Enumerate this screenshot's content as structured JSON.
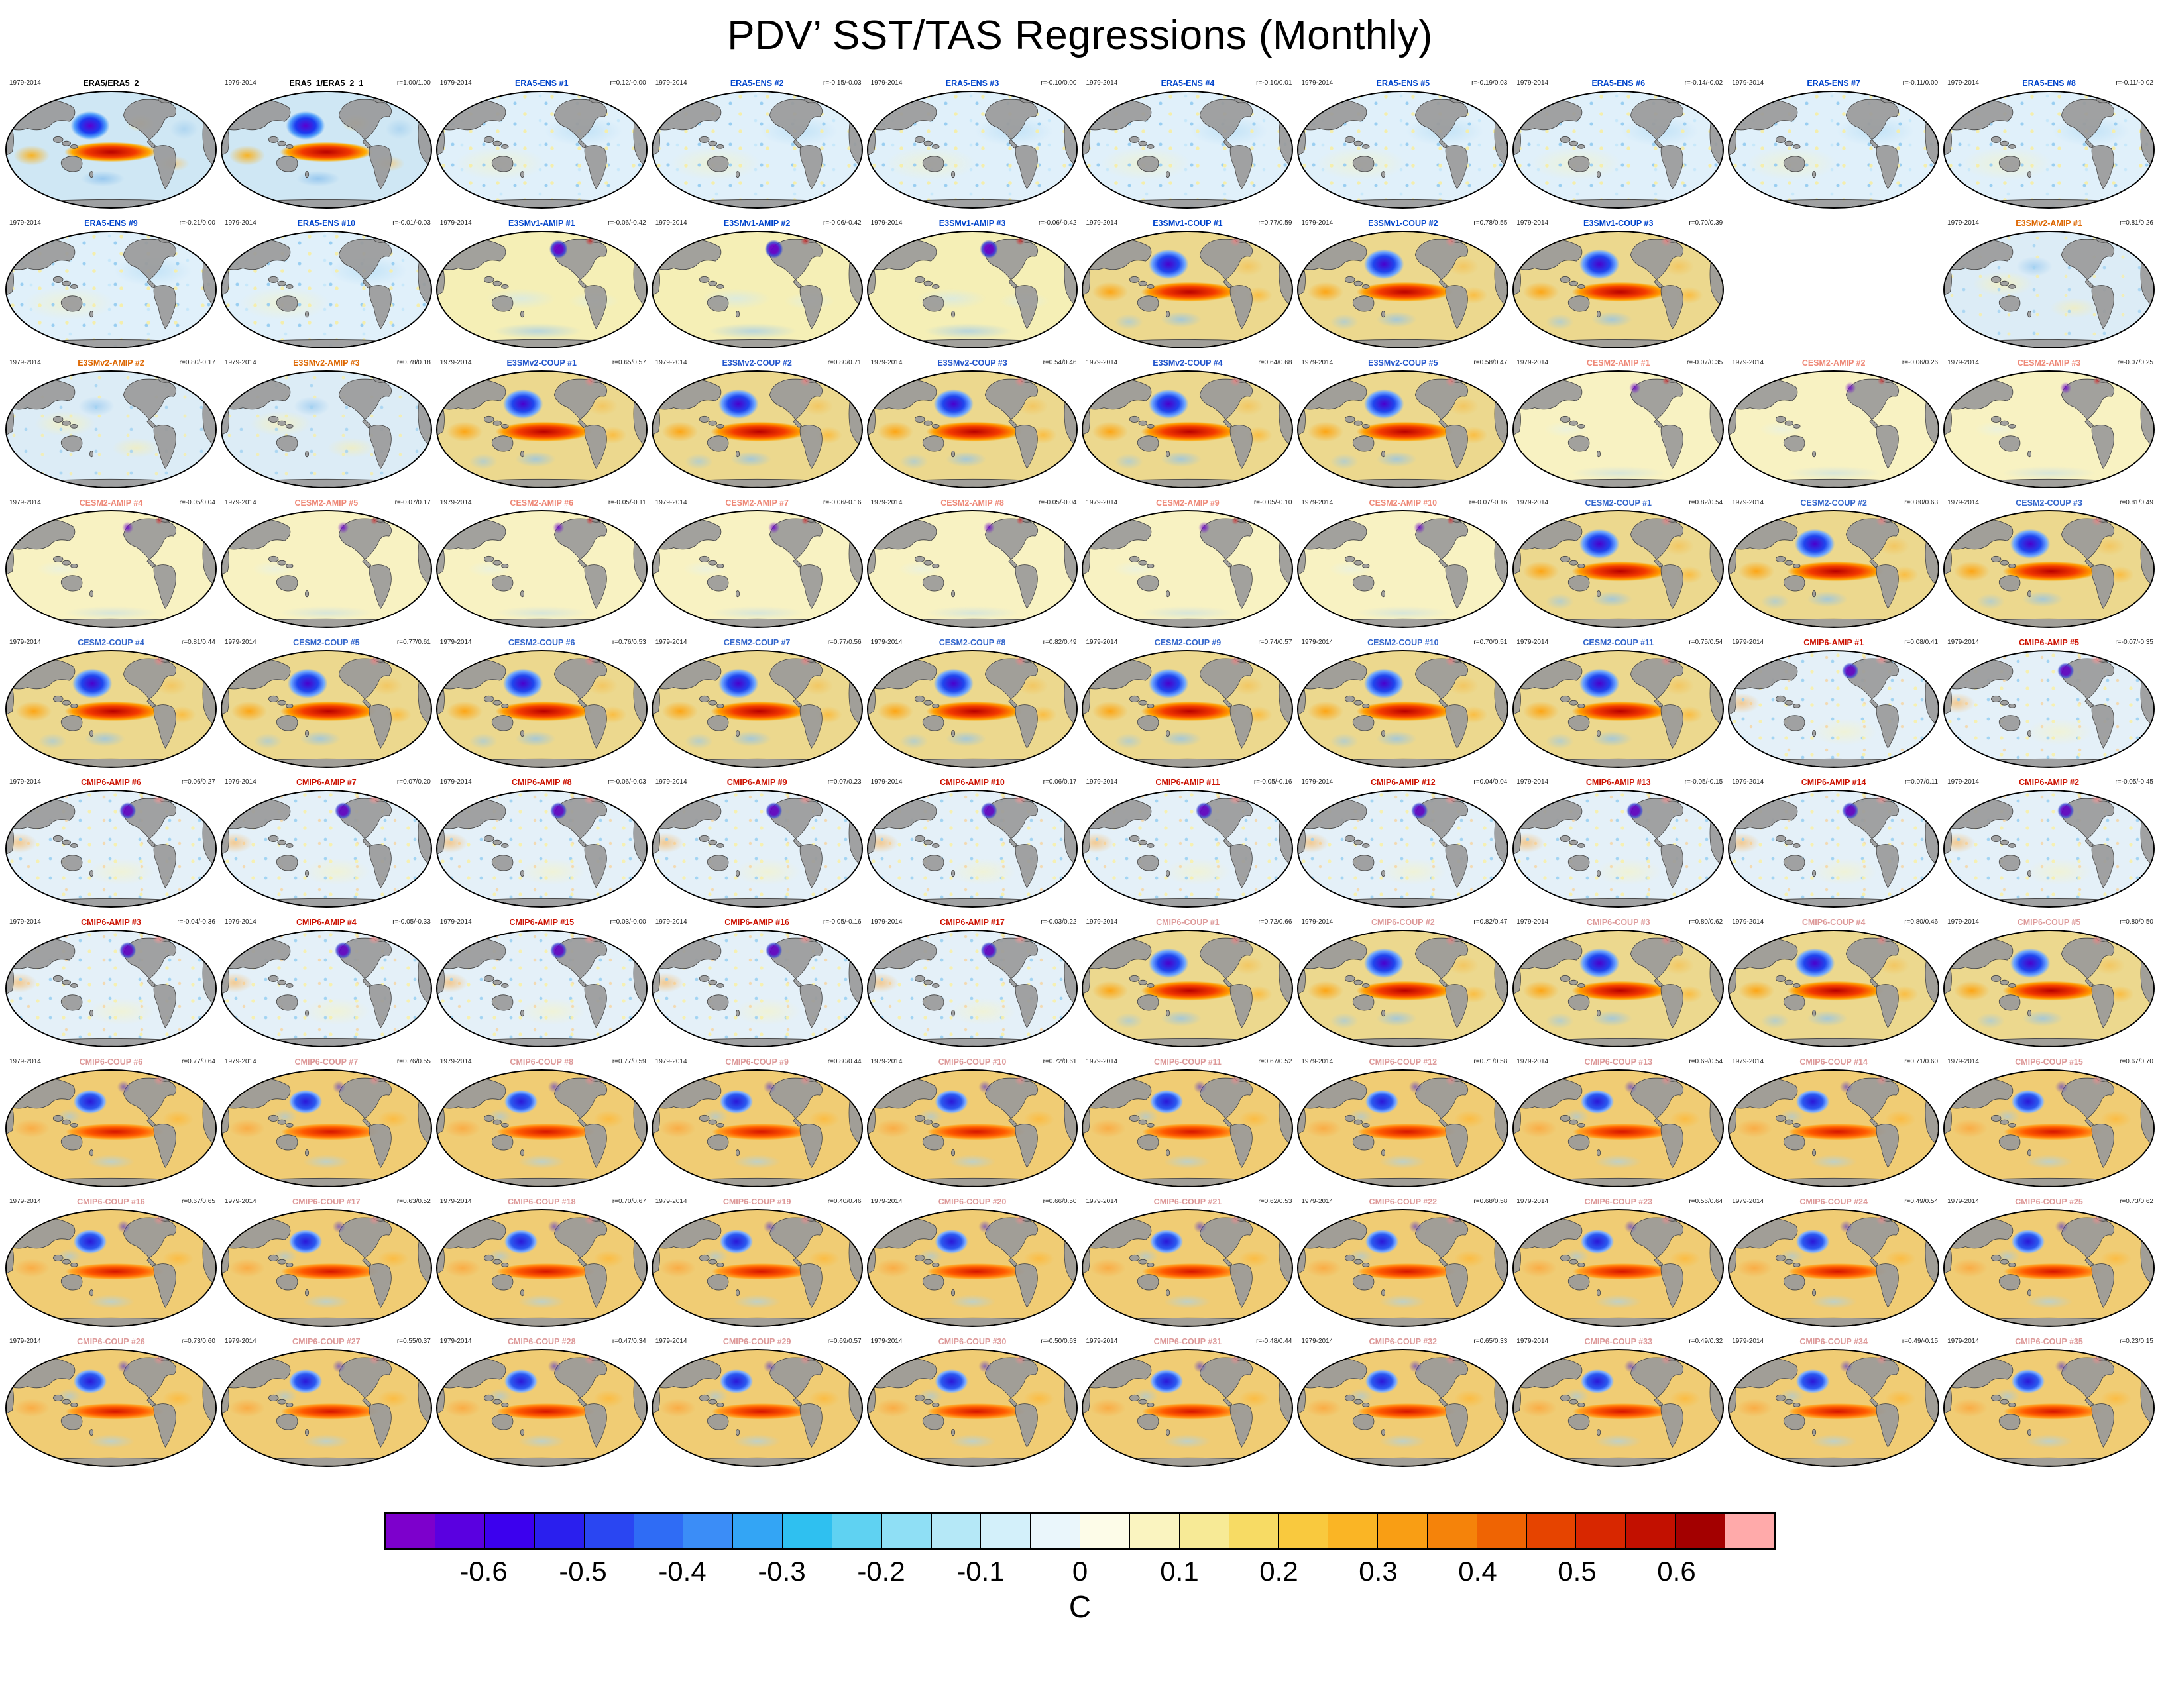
{
  "chart_data": {
    "type": "heatmap",
    "subtype": "global-regression-map-small-multiples",
    "title": "PDV’ SST/TAS Regressions (Monthly)",
    "period": "1979-2014",
    "grid": {
      "rows": 10,
      "cols": 10,
      "empty_cells": [
        {
          "row": 2,
          "col": 9
        }
      ]
    },
    "colorbar": {
      "label": "C",
      "min": -0.7,
      "max": 0.7,
      "tick_values": [
        -0.6,
        -0.5,
        -0.4,
        -0.3,
        -0.2,
        -0.1,
        0,
        0.1,
        0.2,
        0.3,
        0.4,
        0.5,
        0.6
      ],
      "tick_labels": [
        "-0.6",
        "-0.5",
        "-0.4",
        "-0.3",
        "-0.2",
        "-0.1",
        "0",
        "0.1",
        "0.2",
        "0.3",
        "0.4",
        "0.5",
        "0.6"
      ],
      "colors": [
        "#7d00cc",
        "#5a00e0",
        "#3c00ee",
        "#2a1fee",
        "#2a46f2",
        "#2f6cf5",
        "#3b8df7",
        "#33a5f5",
        "#2fc0f0",
        "#5fd2f2",
        "#8fdff5",
        "#b5e8f7",
        "#d3f0fa",
        "#eaf6fb",
        "#fdfce8",
        "#faf4c0",
        "#f7ea96",
        "#f7db64",
        "#f9c93e",
        "#fab525",
        "#f99e14",
        "#f5830a",
        "#ef6403",
        "#e64400",
        "#d82700",
        "#c21000",
        "#a30000",
        "#ffaaaa"
      ]
    },
    "rows": [
      [
        {
          "label": "ERA5/ERA5_2",
          "color": "#000000",
          "r": "",
          "pattern": "obs"
        },
        {
          "label": "ERA5_1/ERA5_2_1",
          "color": "#000000",
          "r": "r=1.00/1.00",
          "pattern": "obs"
        },
        {
          "label": "ERA5-ENS  #1",
          "color": "#0044cc",
          "r": "r=0.12/-0.00",
          "pattern": "ens"
        },
        {
          "label": "ERA5-ENS  #2",
          "color": "#0044cc",
          "r": "r=-0.15/-0.03",
          "pattern": "ens"
        },
        {
          "label": "ERA5-ENS  #3",
          "color": "#0044cc",
          "r": "r=-0.10/0.00",
          "pattern": "ens"
        },
        {
          "label": "ERA5-ENS  #4",
          "color": "#0044cc",
          "r": "r=-0.10/0.01",
          "pattern": "ens"
        },
        {
          "label": "ERA5-ENS  #5",
          "color": "#0044cc",
          "r": "r=-0.19/0.03",
          "pattern": "ens"
        },
        {
          "label": "ERA5-ENS  #6",
          "color": "#0044cc",
          "r": "r=-0.14/-0.02",
          "pattern": "ens"
        },
        {
          "label": "ERA5-ENS  #7",
          "color": "#0044cc",
          "r": "r=-0.11/0.00",
          "pattern": "ens"
        },
        {
          "label": "ERA5-ENS  #8",
          "color": "#0044cc",
          "r": "r=-0.11/-0.02",
          "pattern": "ens"
        }
      ],
      [
        {
          "label": "ERA5-ENS  #9",
          "color": "#0044cc",
          "r": "r=-0.21/0.00",
          "pattern": "ens"
        },
        {
          "label": "ERA5-ENS  #10",
          "color": "#0044cc",
          "r": "r=-0.01/-0.03",
          "pattern": "ens"
        },
        {
          "label": "E3SMv1-AMIP #1",
          "color": "#0044cc",
          "r": "r=-0.06/-0.42",
          "pattern": "amipv1"
        },
        {
          "label": "E3SMv1-AMIP #2",
          "color": "#0044cc",
          "r": "r=-0.06/-0.42",
          "pattern": "amipv1"
        },
        {
          "label": "E3SMv1-AMIP #3",
          "color": "#0044cc",
          "r": "r=-0.06/-0.42",
          "pattern": "amipv1"
        },
        {
          "label": "E3SMv1-COUP #1",
          "color": "#0044cc",
          "r": "r=0.77/0.59",
          "pattern": "coup"
        },
        {
          "label": "E3SMv1-COUP #2",
          "color": "#0044cc",
          "r": "r=0.78/0.55",
          "pattern": "coup"
        },
        {
          "label": "E3SMv1-COUP #3",
          "color": "#0044cc",
          "r": "r=0.70/0.39",
          "pattern": "coup"
        },
        null,
        {
          "label": "E3SMv2-AMIP #1",
          "color": "#dd6600",
          "r": "r=0.81/0.26",
          "pattern": "amipv2"
        }
      ],
      [
        {
          "label": "E3SMv2-AMIP #2",
          "color": "#dd6600",
          "r": "r=0.80/-0.17",
          "pattern": "amipv2"
        },
        {
          "label": "E3SMv2-AMIP #3",
          "color": "#dd6600",
          "r": "r=0.78/0.18",
          "pattern": "amipv2"
        },
        {
          "label": "E3SMv2-COUP #1",
          "color": "#2255cc",
          "r": "r=0.65/0.57",
          "pattern": "coup"
        },
        {
          "label": "E3SMv2-COUP #2",
          "color": "#2255cc",
          "r": "r=0.80/0.71",
          "pattern": "coup"
        },
        {
          "label": "E3SMv2-COUP #3",
          "color": "#2255cc",
          "r": "r=0.54/0.46",
          "pattern": "coup"
        },
        {
          "label": "E3SMv2-COUP #4",
          "color": "#2255cc",
          "r": "r=0.64/0.68",
          "pattern": "coup"
        },
        {
          "label": "E3SMv2-COUP #5",
          "color": "#2255cc",
          "r": "r=0.58/0.47",
          "pattern": "coup"
        },
        {
          "label": "CESM2-AMIP  #1",
          "color": "#ee8877",
          "r": "r=-0.07/0.35",
          "pattern": "amippale"
        },
        {
          "label": "CESM2-AMIP  #2",
          "color": "#ee8877",
          "r": "r=-0.06/0.26",
          "pattern": "amippale"
        },
        {
          "label": "CESM2-AMIP  #3",
          "color": "#ee8877",
          "r": "r=-0.07/0.25",
          "pattern": "amippale"
        }
      ],
      [
        {
          "label": "CESM2-AMIP  #4",
          "color": "#ee8877",
          "r": "r=-0.05/0.04",
          "pattern": "amippale"
        },
        {
          "label": "CESM2-AMIP  #5",
          "color": "#ee8877",
          "r": "r=-0.07/0.17",
          "pattern": "amippale"
        },
        {
          "label": "CESM2-AMIP  #6",
          "color": "#ee8877",
          "r": "r=-0.05/-0.11",
          "pattern": "amippale"
        },
        {
          "label": "CESM2-AMIP  #7",
          "color": "#ee8877",
          "r": "r=-0.06/-0.16",
          "pattern": "amippale"
        },
        {
          "label": "CESM2-AMIP  #8",
          "color": "#ee8877",
          "r": "r=-0.05/-0.04",
          "pattern": "amippale"
        },
        {
          "label": "CESM2-AMIP  #9",
          "color": "#ee8877",
          "r": "r=-0.05/-0.10",
          "pattern": "amippale"
        },
        {
          "label": "CESM2-AMIP  #10",
          "color": "#ee8877",
          "r": "r=-0.07/-0.16",
          "pattern": "amippale"
        },
        {
          "label": "CESM2-COUP  #1",
          "color": "#3366cc",
          "r": "r=0.82/0.54",
          "pattern": "coup"
        },
        {
          "label": "CESM2-COUP  #2",
          "color": "#3366cc",
          "r": "r=0.80/0.63",
          "pattern": "coup"
        },
        {
          "label": "CESM2-COUP  #3",
          "color": "#3366cc",
          "r": "r=0.81/0.49",
          "pattern": "coup"
        }
      ],
      [
        {
          "label": "CESM2-COUP  #4",
          "color": "#3366cc",
          "r": "r=0.81/0.44",
          "pattern": "coup"
        },
        {
          "label": "CESM2-COUP  #5",
          "color": "#3366cc",
          "r": "r=0.77/0.61",
          "pattern": "coup"
        },
        {
          "label": "CESM2-COUP  #6",
          "color": "#3366cc",
          "r": "r=0.76/0.53",
          "pattern": "coup"
        },
        {
          "label": "CESM2-COUP  #7",
          "color": "#3366cc",
          "r": "r=0.77/0.56",
          "pattern": "coup"
        },
        {
          "label": "CESM2-COUP  #8",
          "color": "#3366cc",
          "r": "r=0.82/0.49",
          "pattern": "coup"
        },
        {
          "label": "CESM2-COUP  #9",
          "color": "#3366cc",
          "r": "r=0.74/0.57",
          "pattern": "coup"
        },
        {
          "label": "CESM2-COUP  #10",
          "color": "#3366cc",
          "r": "r=0.70/0.51",
          "pattern": "coup"
        },
        {
          "label": "CESM2-COUP  #11",
          "color": "#3366cc",
          "r": "r=0.75/0.54",
          "pattern": "coup"
        },
        {
          "label": "CMIP6-AMIP  #1",
          "color": "#cc1100",
          "r": "r=0.08/0.41",
          "pattern": "amipspk"
        },
        {
          "label": "CMIP6-AMIP  #5",
          "color": "#cc1100",
          "r": "r=-0.07/-0.35",
          "pattern": "amipspk"
        }
      ],
      [
        {
          "label": "CMIP6-AMIP  #6",
          "color": "#cc1100",
          "r": "r=0.06/0.27",
          "pattern": "amipspk"
        },
        {
          "label": "CMIP6-AMIP  #7",
          "color": "#cc1100",
          "r": "r=0.07/0.20",
          "pattern": "amipspk"
        },
        {
          "label": "CMIP6-AMIP  #8",
          "color": "#cc1100",
          "r": "r=-0.06/-0.03",
          "pattern": "amipspk"
        },
        {
          "label": "CMIP6-AMIP  #9",
          "color": "#cc1100",
          "r": "r=0.07/0.23",
          "pattern": "amipspk"
        },
        {
          "label": "CMIP6-AMIP  #10",
          "color": "#cc1100",
          "r": "r=0.06/0.17",
          "pattern": "amipspk"
        },
        {
          "label": "CMIP6-AMIP  #11",
          "color": "#cc1100",
          "r": "r=-0.05/-0.16",
          "pattern": "amipspk"
        },
        {
          "label": "CMIP6-AMIP  #12",
          "color": "#cc1100",
          "r": "r=0.04/0.04",
          "pattern": "amipspk"
        },
        {
          "label": "CMIP6-AMIP  #13",
          "color": "#cc1100",
          "r": "r=-0.05/-0.15",
          "pattern": "amipspk"
        },
        {
          "label": "CMIP6-AMIP  #14",
          "color": "#cc1100",
          "r": "r=0.07/0.11",
          "pattern": "amipspk"
        },
        {
          "label": "CMIP6-AMIP  #2",
          "color": "#cc1100",
          "r": "r=-0.05/-0.45",
          "pattern": "amipspk"
        }
      ],
      [
        {
          "label": "CMIP6-AMIP  #3",
          "color": "#cc1100",
          "r": "r=-0.04/-0.36",
          "pattern": "amipspk"
        },
        {
          "label": "CMIP6-AMIP  #4",
          "color": "#cc1100",
          "r": "r=-0.05/-0.33",
          "pattern": "amipspk"
        },
        {
          "label": "CMIP6-AMIP  #15",
          "color": "#cc1100",
          "r": "r=0.03/-0.00",
          "pattern": "amipspk"
        },
        {
          "label": "CMIP6-AMIP  #16",
          "color": "#cc1100",
          "r": "r=-0.05/-0.16",
          "pattern": "amipspk"
        },
        {
          "label": "CMIP6-AMIP  #17",
          "color": "#cc1100",
          "r": "r=-0.03/0.22",
          "pattern": "amipspk"
        },
        {
          "label": "CMIP6-COUP  #1",
          "color": "#dd9999",
          "r": "r=0.72/0.66",
          "pattern": "coup"
        },
        {
          "label": "CMIP6-COUP  #2",
          "color": "#dd9999",
          "r": "r=0.82/0.47",
          "pattern": "coup"
        },
        {
          "label": "CMIP6-COUP  #3",
          "color": "#dd9999",
          "r": "r=0.80/0.62",
          "pattern": "coup"
        },
        {
          "label": "CMIP6-COUP  #4",
          "color": "#dd9999",
          "r": "r=0.80/0.46",
          "pattern": "coup"
        },
        {
          "label": "CMIP6-COUP  #5",
          "color": "#dd9999",
          "r": "r=0.80/0.50",
          "pattern": "coup"
        }
      ],
      [
        {
          "label": "CMIP6-COUP  #6",
          "color": "#dd9999",
          "r": "r=0.77/0.64",
          "pattern": "coupwarm"
        },
        {
          "label": "CMIP6-COUP  #7",
          "color": "#dd9999",
          "r": "r=0.76/0.55",
          "pattern": "coupwarm"
        },
        {
          "label": "CMIP6-COUP  #8",
          "color": "#dd9999",
          "r": "r=0.77/0.59",
          "pattern": "coupwarm"
        },
        {
          "label": "CMIP6-COUP  #9",
          "color": "#dd9999",
          "r": "r=0.80/0.44",
          "pattern": "coupwarm"
        },
        {
          "label": "CMIP6-COUP  #10",
          "color": "#dd9999",
          "r": "r=0.72/0.61",
          "pattern": "coupwarm"
        },
        {
          "label": "CMIP6-COUP  #11",
          "color": "#dd9999",
          "r": "r=0.67/0.52",
          "pattern": "coupwarm"
        },
        {
          "label": "CMIP6-COUP  #12",
          "color": "#dd9999",
          "r": "r=0.71/0.58",
          "pattern": "coupwarm"
        },
        {
          "label": "CMIP6-COUP  #13",
          "color": "#dd9999",
          "r": "r=0.69/0.54",
          "pattern": "coupwarm"
        },
        {
          "label": "CMIP6-COUP  #14",
          "color": "#dd9999",
          "r": "r=0.71/0.60",
          "pattern": "coupwarm"
        },
        {
          "label": "CMIP6-COUP  #15",
          "color": "#dd9999",
          "r": "r=0.67/0.70",
          "pattern": "coupwarm"
        }
      ],
      [
        {
          "label": "CMIP6-COUP  #16",
          "color": "#dd9999",
          "r": "r=0.67/0.65",
          "pattern": "coupwarm"
        },
        {
          "label": "CMIP6-COUP  #17",
          "color": "#dd9999",
          "r": "r=0.63/0.52",
          "pattern": "coupwarm"
        },
        {
          "label": "CMIP6-COUP  #18",
          "color": "#dd9999",
          "r": "r=0.70/0.67",
          "pattern": "coupwarm"
        },
        {
          "label": "CMIP6-COUP  #19",
          "color": "#dd9999",
          "r": "r=0.40/0.46",
          "pattern": "coupwarm"
        },
        {
          "label": "CMIP6-COUP  #20",
          "color": "#dd9999",
          "r": "r=0.66/0.50",
          "pattern": "coupwarm"
        },
        {
          "label": "CMIP6-COUP  #21",
          "color": "#dd9999",
          "r": "r=0.62/0.53",
          "pattern": "coupwarm"
        },
        {
          "label": "CMIP6-COUP  #22",
          "color": "#dd9999",
          "r": "r=0.68/0.58",
          "pattern": "coupwarm"
        },
        {
          "label": "CMIP6-COUP  #23",
          "color": "#dd9999",
          "r": "r=0.56/0.64",
          "pattern": "coupwarm"
        },
        {
          "label": "CMIP6-COUP  #24",
          "color": "#dd9999",
          "r": "r=0.49/0.54",
          "pattern": "coupwarm"
        },
        {
          "label": "CMIP6-COUP  #25",
          "color": "#dd9999",
          "r": "r=0.73/0.62",
          "pattern": "coupwarm"
        }
      ],
      [
        {
          "label": "CMIP6-COUP  #26",
          "color": "#dd9999",
          "r": "r=0.73/0.60",
          "pattern": "coupwarm"
        },
        {
          "label": "CMIP6-COUP  #27",
          "color": "#dd9999",
          "r": "r=0.55/0.37",
          "pattern": "coupwarm"
        },
        {
          "label": "CMIP6-COUP  #28",
          "color": "#dd9999",
          "r": "r=0.47/0.34",
          "pattern": "coupwarm"
        },
        {
          "label": "CMIP6-COUP  #29",
          "color": "#dd9999",
          "r": "r=0.69/0.57",
          "pattern": "coupwarm"
        },
        {
          "label": "CMIP6-COUP  #30",
          "color": "#dd9999",
          "r": "r=-0.50/0.63",
          "pattern": "coupwarm"
        },
        {
          "label": "CMIP6-COUP  #31",
          "color": "#dd9999",
          "r": "r=-0.48/0.44",
          "pattern": "coupwarm"
        },
        {
          "label": "CMIP6-COUP  #32",
          "color": "#dd9999",
          "r": "r=0.65/0.33",
          "pattern": "coupwarm"
        },
        {
          "label": "CMIP6-COUP  #33",
          "color": "#dd9999",
          "r": "r=0.49/0.32",
          "pattern": "coupwarm"
        },
        {
          "label": "CMIP6-COUP  #34",
          "color": "#dd9999",
          "r": "r=0.49/-0.15",
          "pattern": "coupwarm"
        },
        {
          "label": "CMIP6-COUP  #35",
          "color": "#dd9999",
          "r": "r=0.23/0.15",
          "pattern": "coupwarm"
        }
      ]
    ]
  }
}
